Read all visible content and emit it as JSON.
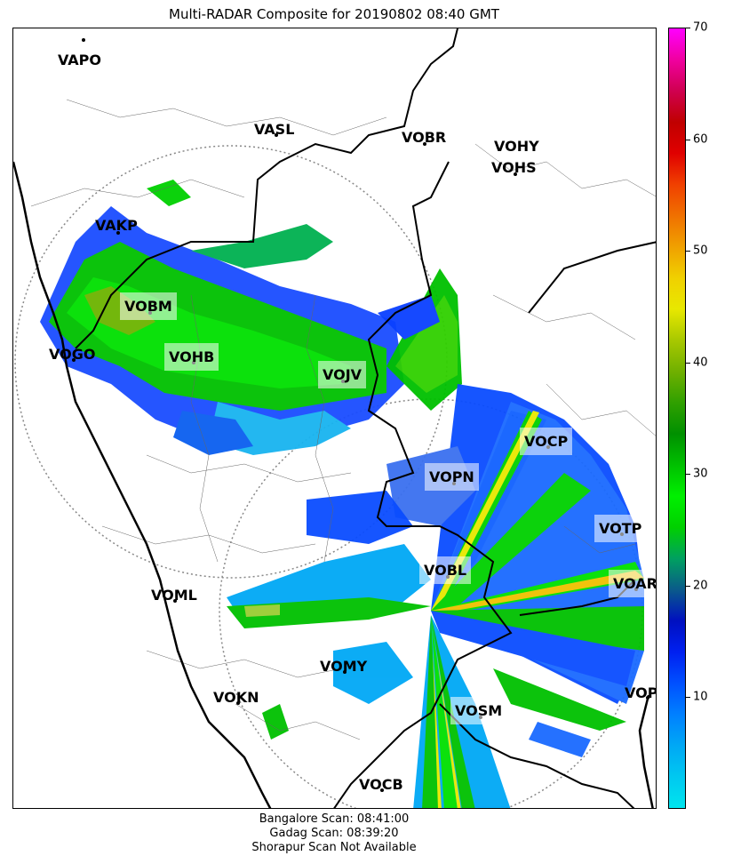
{
  "title": "Multi-RADAR Composite for 20190802 08:40 GMT",
  "colorbar": {
    "ticks": [
      "10",
      "20",
      "30",
      "40",
      "50",
      "60",
      "70"
    ],
    "colors": [
      "#00e5ee",
      "#00c8f0",
      "#00a8f5",
      "#0080ff",
      "#0050ff",
      "#0020f0",
      "#0010c0",
      "#0a5a8a",
      "#00a060",
      "#00d000",
      "#00f000",
      "#00c000",
      "#009000",
      "#30a000",
      "#70b000",
      "#a8c800",
      "#e8e800",
      "#f0d000",
      "#f0a000",
      "#f07000",
      "#f04000",
      "#e00000",
      "#c00000",
      "#d00050",
      "#f000a0",
      "#ff00ff"
    ],
    "min": 0,
    "max": 70
  },
  "stations": [
    {
      "name": "VAPO",
      "highlight": false
    },
    {
      "name": "VASL",
      "highlight": false
    },
    {
      "name": "VOBR",
      "highlight": false
    },
    {
      "name": "VOHY",
      "highlight": false
    },
    {
      "name": "VOHS",
      "highlight": false
    },
    {
      "name": "VAKP",
      "highlight": false
    },
    {
      "name": "VOBM",
      "highlight": true
    },
    {
      "name": "VOGO",
      "highlight": false
    },
    {
      "name": "VOHB",
      "highlight": true
    },
    {
      "name": "VOJV",
      "highlight": true
    },
    {
      "name": "VOCP",
      "highlight": true
    },
    {
      "name": "VOPN",
      "highlight": true
    },
    {
      "name": "VOTP",
      "highlight": true
    },
    {
      "name": "VOBL",
      "highlight": true
    },
    {
      "name": "VOAR",
      "highlight": true
    },
    {
      "name": "VOML",
      "highlight": false
    },
    {
      "name": "VOMY",
      "highlight": false
    },
    {
      "name": "VOKN",
      "highlight": false
    },
    {
      "name": "VOSM",
      "highlight": true
    },
    {
      "name": "VOPC",
      "highlight": false
    },
    {
      "name": "VOCB",
      "highlight": false
    }
  ],
  "footer": {
    "line1": "Bangalore Scan: 08:41:00",
    "line2": "Gadag Scan: 08:39:20",
    "line3": "Shorapur Scan Not Available"
  }
}
